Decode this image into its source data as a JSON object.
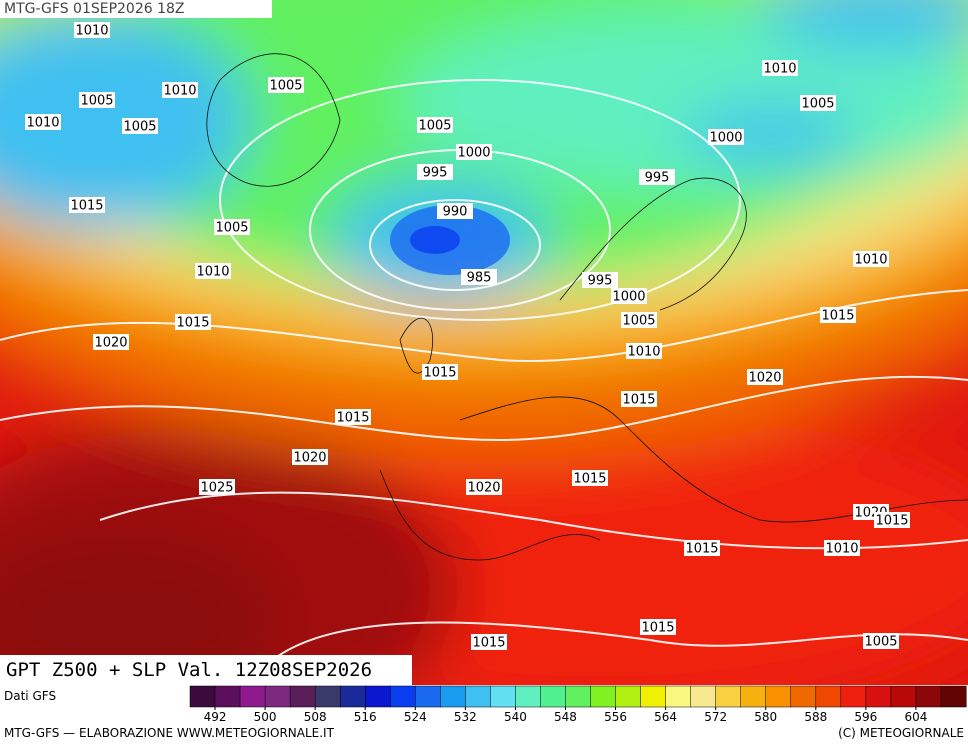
{
  "header": {
    "run": "MTG-GFS 01SEP2026 18Z",
    "title": "GPT Z500 + SLP Val. 12Z08SEP2026"
  },
  "isobar_labels": [
    1010,
    1005,
    1010,
    1010,
    1005,
    1005,
    1005,
    1000,
    995,
    990,
    985,
    1015,
    1005,
    1010,
    1015,
    1020,
    1010,
    1005,
    1000,
    995,
    995,
    1000,
    1005,
    1010,
    1015,
    1015,
    1020,
    1025,
    1020,
    1015,
    1015,
    1020,
    1015,
    1010,
    1020,
    1015,
    1010,
    1015,
    1015,
    1015,
    1005
  ],
  "colorbar": {
    "source": "Dati GFS",
    "lim": [
      488,
      612
    ],
    "ticks": [
      492,
      500,
      508,
      516,
      524,
      532,
      540,
      548,
      556,
      564,
      572,
      580,
      588,
      596,
      604
    ],
    "colors": [
      "#3c0a3c",
      "#5c105c",
      "#8e1a8e",
      "#7c2a80",
      "#5a1e5a",
      "#3a3a6a",
      "#1a2a9a",
      "#0a18d0",
      "#0a3cf0",
      "#1a6af0",
      "#1a9cf0",
      "#40c0f0",
      "#60e0f0",
      "#60f0c0",
      "#50f090",
      "#60f060",
      "#80f020",
      "#b0f010",
      "#f0f000",
      "#f8f880",
      "#f8e890",
      "#f8d040",
      "#f8b010",
      "#f89000",
      "#f06800",
      "#f04800",
      "#f02010",
      "#d81010",
      "#b80808",
      "#8c0808",
      "#600404"
    ]
  },
  "footer": {
    "left": "MTG-GFS — ELABORAZIONE WWW.METEOGIORNALE.IT",
    "right": "(C) METEOGIORNALE"
  }
}
